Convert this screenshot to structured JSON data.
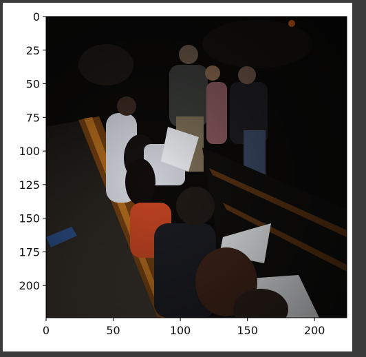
{
  "figure": {
    "x_ticks": [
      "0",
      "50",
      "100",
      "150",
      "200"
    ],
    "y_ticks": [
      "0",
      "25",
      "50",
      "75",
      "100",
      "125",
      "150",
      "175",
      "200"
    ],
    "xlim": [
      0,
      224
    ],
    "ylim": [
      224,
      0
    ]
  },
  "image": {
    "description_icon": "photo-of-audience-in-theater-seats"
  }
}
